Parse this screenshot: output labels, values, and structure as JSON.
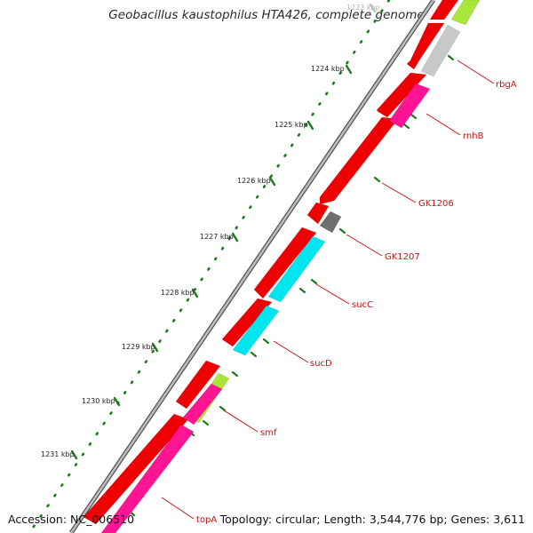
{
  "title": "Geobacillus kaustophilus HTA426, complete genome",
  "footer": {
    "accession": "Accession: NC_006510",
    "topology": "Topology: circular; Length: 3,544,776 bp; Genes: 3,611"
  },
  "ticks": [
    {
      "label": "1223 kbp"
    },
    {
      "label": "1224 kbp"
    },
    {
      "label": "1225 kbp"
    },
    {
      "label": "1226 kbp"
    },
    {
      "label": "1227 kbp"
    },
    {
      "label": "1228 kbp"
    },
    {
      "label": "1229 kbp"
    },
    {
      "label": "1230 kbp"
    },
    {
      "label": "1231 kbp"
    }
  ],
  "gene_labels": [
    {
      "label": "rbgA"
    },
    {
      "label": "rnhB"
    },
    {
      "label": "GK1206"
    },
    {
      "label": "GK1207"
    },
    {
      "label": "sucC"
    },
    {
      "label": "sucD"
    },
    {
      "label": "smf"
    },
    {
      "label": "topA"
    }
  ],
  "colors": {
    "gene_red": "#ee0000",
    "rRNA_magenta": "#ff1493",
    "cyan": "#00e5ee",
    "lime": "#a8e63a",
    "light_gray": "#c8c8c8",
    "dark_gray": "#6e6e6e",
    "backbone": "#8a8a8a",
    "tick_green": "#1a7a1a",
    "label_red": "#cc1111"
  }
}
